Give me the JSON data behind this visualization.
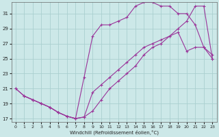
{
  "xlabel": "Windchill (Refroidissement éolien,°C)",
  "bg_color": "#cce8e8",
  "grid_color": "#aacfcf",
  "line_color": "#993399",
  "xlim": [
    -0.5,
    23.5
  ],
  "ylim": [
    16.5,
    32.5
  ],
  "xticks": [
    0,
    1,
    2,
    3,
    4,
    5,
    6,
    7,
    8,
    9,
    10,
    11,
    12,
    13,
    14,
    15,
    16,
    17,
    18,
    19,
    20,
    21,
    22,
    23
  ],
  "yticks": [
    17,
    19,
    21,
    23,
    25,
    27,
    29,
    31
  ],
  "line1_x": [
    0,
    1,
    2,
    3,
    4,
    5,
    6,
    7,
    8,
    9,
    10,
    11,
    12,
    13,
    14,
    15,
    16,
    17,
    18,
    19,
    20,
    21,
    22,
    23
  ],
  "line1_y": [
    21.0,
    20.0,
    19.5,
    19.0,
    18.5,
    17.8,
    17.3,
    17.0,
    17.2,
    20.5,
    21.5,
    22.5,
    23.5,
    24.5,
    25.5,
    26.5,
    27.0,
    27.5,
    28.0,
    28.5,
    26.0,
    26.5,
    26.5,
    25.0
  ],
  "line2_x": [
    0,
    1,
    2,
    3,
    4,
    5,
    6,
    7,
    8,
    9,
    10,
    11,
    12,
    13,
    14,
    15,
    16,
    17,
    18,
    19,
    20,
    21,
    22,
    23
  ],
  "line2_y": [
    21.0,
    20.0,
    19.5,
    19.0,
    18.5,
    17.8,
    17.3,
    17.0,
    22.5,
    28.0,
    29.5,
    29.5,
    30.0,
    30.5,
    32.0,
    32.5,
    32.5,
    32.0,
    32.0,
    31.0,
    31.0,
    29.5,
    26.5,
    25.5
  ],
  "line3_x": [
    1,
    2,
    3,
    4,
    5,
    6,
    7,
    8,
    9,
    10,
    11,
    12,
    13,
    14,
    15,
    16,
    17,
    18,
    19,
    20,
    21,
    22,
    23
  ],
  "line3_y": [
    20.0,
    19.5,
    19.0,
    18.5,
    17.8,
    17.3,
    17.0,
    17.2,
    18.0,
    19.5,
    21.0,
    22.0,
    23.0,
    24.0,
    25.5,
    26.5,
    27.0,
    28.0,
    29.0,
    30.0,
    32.0,
    32.0,
    25.0
  ]
}
